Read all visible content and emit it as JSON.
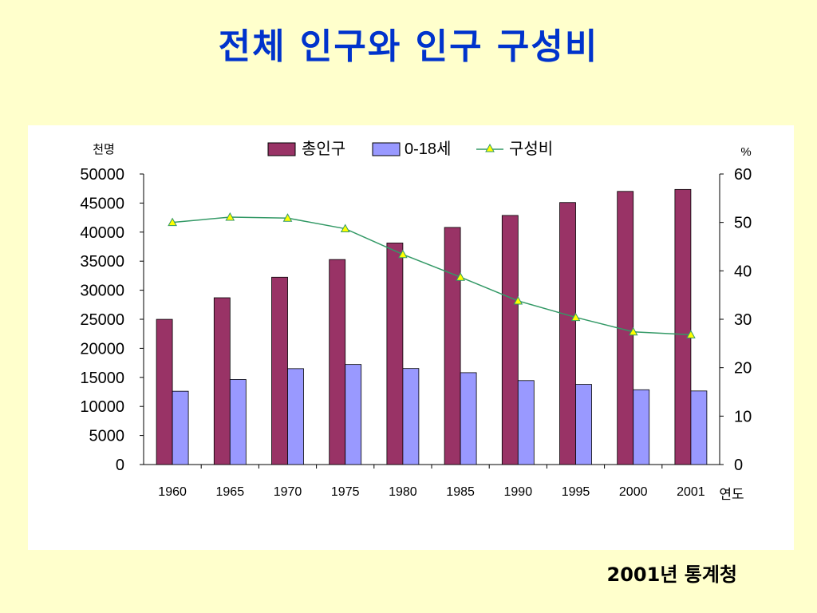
{
  "title": "전체 인구와 인구 구성비",
  "source": "2001년 통계청",
  "colors": {
    "background": "#ffffcc",
    "title": "#0033cc",
    "total_bar": "#993366",
    "youth_bar": "#9999ff",
    "ratio_line": "#339966",
    "ratio_marker": "#ffff00"
  },
  "chart_data": {
    "type": "bar",
    "categories": [
      "1960",
      "1965",
      "1970",
      "1975",
      "1980",
      "1985",
      "1990",
      "1995",
      "2000",
      "2001"
    ],
    "series": [
      {
        "name": "총인구",
        "type": "bar",
        "axis": "left",
        "values": [
          24989,
          28705,
          32241,
          35281,
          38124,
          40806,
          42869,
          45093,
          47008,
          47343
        ]
      },
      {
        "name": "0-18세",
        "type": "bar",
        "axis": "left",
        "values": [
          12616,
          14640,
          16504,
          17219,
          16530,
          15810,
          14451,
          13793,
          12870,
          12662
        ]
      },
      {
        "name": "구성비",
        "type": "line",
        "axis": "right",
        "values": [
          50.0,
          51.1,
          50.9,
          48.7,
          43.4,
          38.7,
          33.8,
          30.4,
          27.4,
          26.8
        ]
      }
    ],
    "left_axis": {
      "unit": "천명",
      "ylim": [
        0,
        50000
      ],
      "ticks": [
        "0",
        "5000",
        "10000",
        "15000",
        "20000",
        "25000",
        "30000",
        "35000",
        "40000",
        "45000",
        "50000"
      ]
    },
    "right_axis": {
      "unit": "%",
      "ylim": [
        0,
        60
      ],
      "ticks": [
        "0",
        "10",
        "20",
        "30",
        "40",
        "50",
        "60"
      ]
    },
    "xlabel": "연도",
    "legend_position": "top",
    "grid": false
  }
}
